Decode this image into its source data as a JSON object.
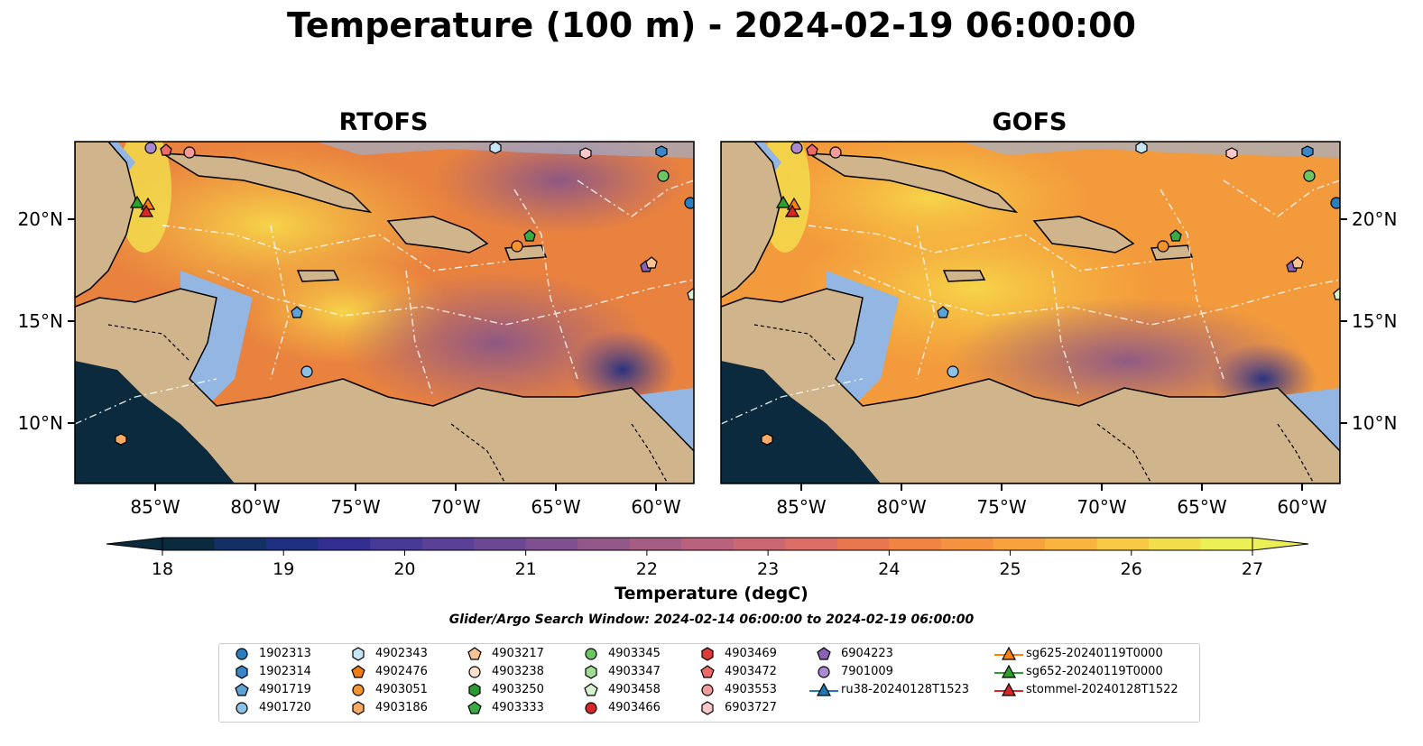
{
  "title": "Temperature (100 m) - 2024-02-19 06:00:00",
  "panels": [
    {
      "title": "RTOFS"
    },
    {
      "title": "GOFS"
    }
  ],
  "lon_ticks": [
    "85°W",
    "80°W",
    "75°W",
    "70°W",
    "65°W",
    "60°W"
  ],
  "lat_ticks": [
    "20°N",
    "15°N",
    "10°N"
  ],
  "colorbar": {
    "label": "Temperature (degC)",
    "ticks": [
      "18",
      "19",
      "20",
      "21",
      "22",
      "23",
      "24",
      "25",
      "26",
      "27"
    ],
    "colors": [
      "#0b2a3e",
      "#142f63",
      "#1f2f82",
      "#332f92",
      "#463a96",
      "#5a4096",
      "#6c4894",
      "#7e5090",
      "#925889",
      "#a65d84",
      "#b9617d",
      "#cb6673",
      "#dc6d66",
      "#e8774f",
      "#f08443",
      "#f59240",
      "#f8a23e",
      "#f9b43f",
      "#f7c944",
      "#f2dd4a",
      "#ecef55"
    ],
    "min_color": "#0b2a3e",
    "max_color": "#ecef55"
  },
  "search_window": "Glider/Argo Search Window: 2024-02-14 06:00:00 to 2024-02-19 06:00:00",
  "legend": {
    "columns": [
      [
        {
          "label": "1902313",
          "marker": "circle",
          "color": "#2a7fc0"
        },
        {
          "label": "1902314",
          "marker": "hexagon",
          "color": "#3a86c6"
        },
        {
          "label": "4901719",
          "marker": "pentagon",
          "color": "#5ea2d6"
        },
        {
          "label": "4901720",
          "marker": "circle",
          "color": "#8cc2e6"
        }
      ],
      [
        {
          "label": "4902343",
          "marker": "hexagon",
          "color": "#c7e6f5"
        },
        {
          "label": "4902476",
          "marker": "pentagon",
          "color": "#f07d14"
        },
        {
          "label": "4903051",
          "marker": "circle",
          "color": "#f5932e"
        },
        {
          "label": "4903186",
          "marker": "hexagon",
          "color": "#f7ab62"
        }
      ],
      [
        {
          "label": "4903217",
          "marker": "pentagon",
          "color": "#f9c394"
        },
        {
          "label": "4903238",
          "marker": "circle",
          "color": "#fde0c8"
        },
        {
          "label": "4903250",
          "marker": "hexagon",
          "color": "#2b9a35"
        },
        {
          "label": "4903333",
          "marker": "pentagon",
          "color": "#3aaa44"
        }
      ],
      [
        {
          "label": "4903345",
          "marker": "circle",
          "color": "#6cc664"
        },
        {
          "label": "4903347",
          "marker": "hexagon",
          "color": "#a2dc92"
        },
        {
          "label": "4903458",
          "marker": "pentagon",
          "color": "#d6f1cd"
        },
        {
          "label": "4903466",
          "marker": "circle",
          "color": "#d62728"
        }
      ],
      [
        {
          "label": "4903469",
          "marker": "hexagon",
          "color": "#dd3a3a"
        },
        {
          "label": "4903472",
          "marker": "pentagon",
          "color": "#ec6a6a"
        },
        {
          "label": "4903553",
          "marker": "circle",
          "color": "#f39a9a"
        },
        {
          "label": "6903727",
          "marker": "hexagon",
          "color": "#f9c8c8"
        }
      ],
      [
        {
          "label": "6904223",
          "marker": "pentagon",
          "color": "#8a62b8"
        },
        {
          "label": "7901009",
          "marker": "circle",
          "color": "#a989d0"
        },
        {
          "label": "ru38-20240128T1523",
          "marker": "triangle-line",
          "color": "#1f77b4"
        }
      ],
      [
        {
          "label": "sg625-20240119T0000",
          "marker": "triangle-line",
          "color": "#ff7f0e"
        },
        {
          "label": "sg652-20240119T0000",
          "marker": "triangle-line",
          "color": "#2ca02c"
        },
        {
          "label": "stommel-20240128T1522",
          "marker": "triangle-line",
          "color": "#d62728"
        }
      ]
    ]
  },
  "map_colors": {
    "land": "#d0b48c",
    "shelf": "#94b6e2",
    "pacific": "#0b2a3e",
    "warm": "#f39a3c",
    "hot": "#f8c845",
    "cool": "#7e5090",
    "cold": "#2f2f8a"
  }
}
